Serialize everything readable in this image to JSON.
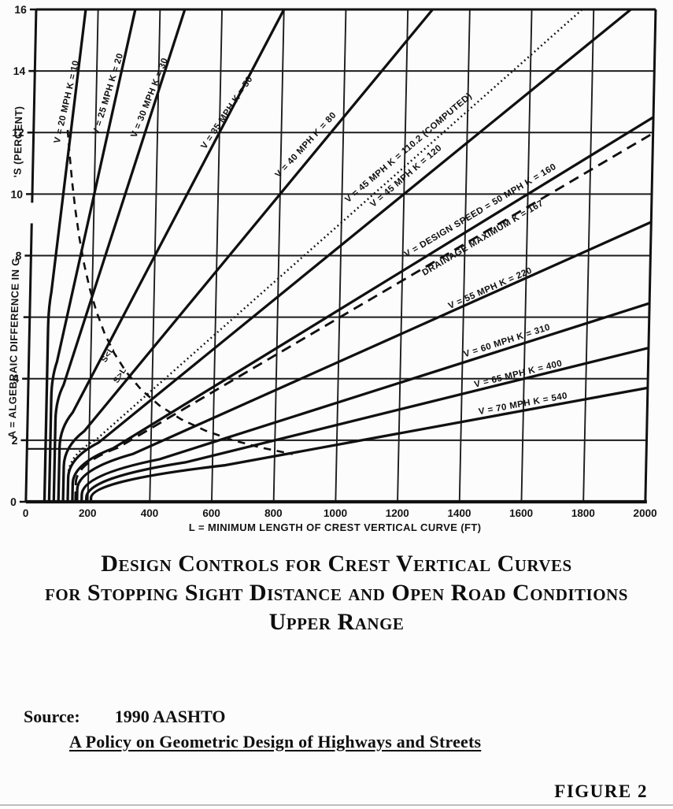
{
  "chart_data": {
    "type": "line",
    "title": "Design Controls for Crest Vertical Curves for Stopping Sight Distance and Open Road Conditions — Upper Range",
    "xlabel": "L = MINIMUM LENGTH OF CREST VERTICAL CURVE (FT)",
    "ylabel_lower_segment": "A = ALGEBRAIC DIFFERENCE IN G",
    "ylabel_upper_segment": "'S (PERCENT)",
    "xlim": [
      0,
      2000
    ],
    "ylim": [
      0,
      16
    ],
    "x_ticks": [
      0,
      200,
      400,
      600,
      800,
      1000,
      1200,
      1400,
      1600,
      1800,
      2000
    ],
    "y_ticks_labeled": [
      0,
      2,
      4,
      8,
      10,
      12,
      14,
      16
    ],
    "y_gridlines": [
      2,
      4,
      6,
      8,
      10,
      12,
      14,
      16
    ],
    "grid": true,
    "series": [
      {
        "label": "V = 20 MPH  K = 10",
        "v_mph": 20,
        "k": 10,
        "l_min_ft": 60,
        "style": "solid",
        "label_l": 113,
        "label_a": 12.98,
        "label_rot": -78
      },
      {
        "label": "V = 25 MPH  K = 20",
        "v_mph": 25,
        "k": 20,
        "l_min_ft": 75,
        "style": "solid",
        "label_l": 246,
        "label_a": 13.23,
        "label_rot": -74
      },
      {
        "label": "V = 30 MPH  K = 30",
        "v_mph": 30,
        "k": 30,
        "l_min_ft": 90,
        "style": "solid",
        "label_l": 380,
        "label_a": 13.1,
        "label_rot": -69
      },
      {
        "label": "V = 35 MPH  K = 50",
        "v_mph": 35,
        "k": 50,
        "l_min_ft": 105,
        "style": "solid",
        "label_l": 630,
        "label_a": 12.6,
        "label_rot": -57
      },
      {
        "label": "V = 40 MPH  K = 80",
        "v_mph": 40,
        "k": 80,
        "l_min_ft": 120,
        "style": "solid",
        "label_l": 886,
        "label_a": 11.54,
        "label_rot": -48
      },
      {
        "label": "V = 45 MPH  K = 110.2 (COMPUTED)",
        "v_mph": 45,
        "k": 110.2,
        "l_min_ft": 135,
        "style": "dotted",
        "label_l": 1217,
        "label_a": 11.44,
        "label_rot": -41
      },
      {
        "label": "V = 45 MPH  K = 120",
        "v_mph": 45,
        "k": 120,
        "l_min_ft": 135,
        "style": "solid",
        "label_l": 1211,
        "label_a": 10.52,
        "label_rot": -41
      },
      {
        "label": "V = DESIGN  SPEED = 50 MPH   K = 160",
        "v_mph": 50,
        "k": 160,
        "l_min_ft": 150,
        "style": "solid",
        "label_l": 1452,
        "label_a": 9.39,
        "label_rot": -31
      },
      {
        "label": "DRAINAGE MAXIMUM  K = 167",
        "v_mph": null,
        "k": 167,
        "l_min_ft": 160,
        "style": "dashed",
        "label_l": 1462,
        "label_a": 8.5,
        "label_rot": -31
      },
      {
        "label": "V = 55 MPH  K = 220",
        "v_mph": 55,
        "k": 220,
        "l_min_ft": 165,
        "style": "solid",
        "label_l": 1488,
        "label_a": 6.86,
        "label_rot": -24
      },
      {
        "label": "V = 60 MPH  K = 310",
        "v_mph": 60,
        "k": 310,
        "l_min_ft": 180,
        "style": "solid",
        "label_l": 1545,
        "label_a": 5.15,
        "label_rot": -18
      },
      {
        "label": "V = 65 MPH  K = 400",
        "v_mph": 65,
        "k": 400,
        "l_min_ft": 195,
        "style": "solid",
        "label_l": 1583,
        "label_a": 4.07,
        "label_rot": -14
      },
      {
        "label": "V = 70 MPH  K = 540",
        "v_mph": 70,
        "k": 540,
        "l_min_ft": 210,
        "style": "solid",
        "label_l": 1600,
        "label_a": 3.1,
        "label_rot": -10.5
      }
    ],
    "boundary_curve": {
      "description": "S = L boundary, A = 1329 / L",
      "constant": 1329,
      "l_points": [
        110,
        118,
        128,
        140,
        155,
        172,
        192,
        215,
        242,
        275,
        315,
        365,
        425,
        495,
        575,
        660,
        750,
        858
      ],
      "label_above": "S<L",
      "label_below": "S>L",
      "label_above_l": 262,
      "label_above_a": 4.74,
      "label_below_l": 302,
      "label_below_a": 4.07,
      "label_rot": -58
    },
    "artifact_segment": {
      "a": 1.72,
      "l_from": 0,
      "l_to": 190
    },
    "axis_break": {
      "from_a": 9.05,
      "to_a": 9.72
    }
  },
  "caption": {
    "line1": "Design Controls for Crest Vertical Curves",
    "line2": "for Stopping Sight Distance and Open Road Conditions",
    "line3": "Upper Range"
  },
  "source": {
    "label": "Source:",
    "name": "1990 AASHTO",
    "title": "A Policy on Geometric Design of Highways and Streets"
  },
  "figure_label": "FIGURE 2"
}
